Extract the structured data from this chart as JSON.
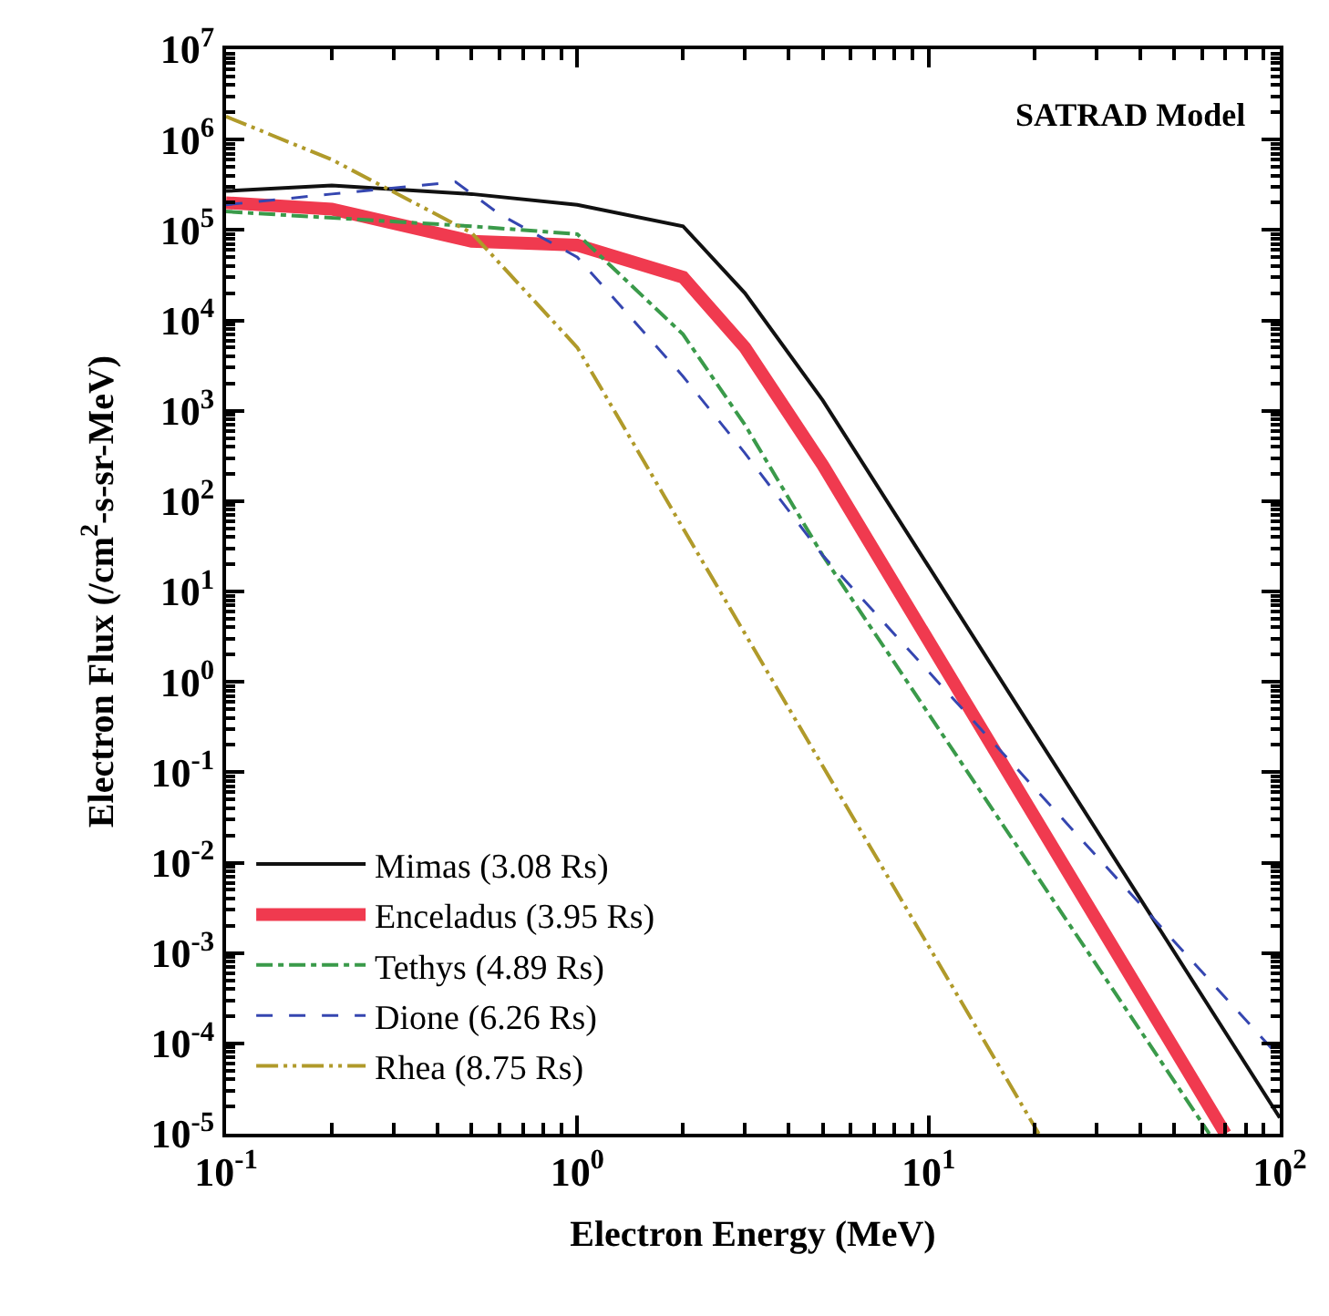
{
  "chart_data": {
    "type": "line",
    "xlabel": "Electron Energy (MeV)",
    "ylabel": "Electron Flux (/cm$^{2}$-s-sr-MeV)",
    "annotations": [
      "SATRAD Model"
    ],
    "log": "xy",
    "legend": "bottom left",
    "marker": "none",
    "xlim": [
      0.1,
      100
    ],
    "ylim": [
      1e-05,
      10000000.0
    ],
    "xticks": [
      {
        "value": 0.1,
        "label": "10$^{-1}$"
      },
      {
        "value": 1,
        "label": "10$^{0}$"
      },
      {
        "value": 10,
        "label": "10$^{1}$"
      },
      {
        "value": 100,
        "label": "10$^{2}$"
      }
    ],
    "yticks": [
      {
        "value": 1e-05,
        "label": "10$^{-5}$"
      },
      {
        "value": 0.0001,
        "label": "10$^{-4}$"
      },
      {
        "value": 0.001,
        "label": "10$^{-3}$"
      },
      {
        "value": 0.01,
        "label": "10$^{-2}$"
      },
      {
        "value": 0.1,
        "label": "10$^{-1}$"
      },
      {
        "value": 1,
        "label": "10$^{0}$"
      },
      {
        "value": 10,
        "label": "10$^{1}$"
      },
      {
        "value": 100,
        "label": "10$^{2}$"
      },
      {
        "value": 1000,
        "label": "10$^{3}$"
      },
      {
        "value": 10000,
        "label": "10$^{4}$"
      },
      {
        "value": 100000,
        "label": "10$^{5}$"
      },
      {
        "value": 1000000,
        "label": "10$^{6}$"
      },
      {
        "value": 10000000,
        "label": "10$^{7}$"
      }
    ],
    "series": [
      {
        "name": "Mimas (3.08 Rs)",
        "color": "#111111",
        "line_style": "solid",
        "x": [
          0.1,
          0.2,
          0.5,
          1,
          2,
          3,
          5,
          100
        ],
        "values": [
          270000,
          310000,
          250000,
          190000,
          110000,
          20000,
          1300,
          1.5e-05
        ]
      },
      {
        "name": "Enceladus (3.95 Rs)",
        "color": "#f03a4f",
        "line_style": "solid",
        "x": [
          0.1,
          0.2,
          0.5,
          1,
          2,
          3,
          5,
          70
        ],
        "values": [
          200000,
          170000,
          75000,
          68000,
          30000,
          5000,
          250,
          1e-05
        ]
      },
      {
        "name": "Tethys (4.89 Rs)",
        "color": "#3a9a4a",
        "line_style": "dashdot",
        "x": [
          0.1,
          0.5,
          1,
          2,
          3,
          5,
          63
        ],
        "values": [
          160000,
          110000,
          90000,
          7000,
          700,
          25,
          1e-05
        ]
      },
      {
        "name": "Dione (6.26 Rs)",
        "color": "#3546b0",
        "line_style": "dashed",
        "x": [
          0.1,
          0.2,
          0.45,
          0.6,
          1,
          2,
          3,
          5,
          100
        ],
        "values": [
          190000,
          250000,
          340000,
          150000,
          50000,
          2400,
          340,
          25,
          7e-05
        ]
      },
      {
        "name": "Rhea (8.75 Rs)",
        "color": "#b09a2a",
        "line_style": "dashdotdot",
        "x": [
          0.1,
          0.2,
          0.5,
          1,
          2,
          20.6
        ],
        "values": [
          1800000,
          600000,
          93000,
          5000,
          50,
          1e-05
        ]
      }
    ]
  }
}
